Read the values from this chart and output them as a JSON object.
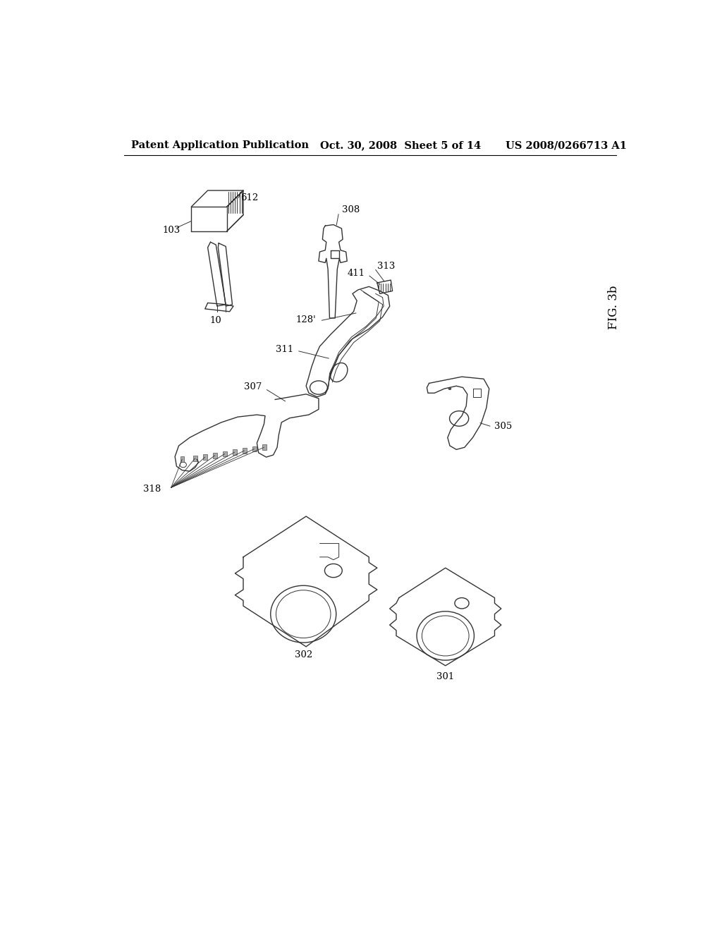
{
  "background_color": "#ffffff",
  "header_left": "Patent Application Publication",
  "header_center": "Oct. 30, 2008  Sheet 5 of 14",
  "header_right": "US 2008/0266713 A1",
  "figure_label": "FIG. 3b"
}
